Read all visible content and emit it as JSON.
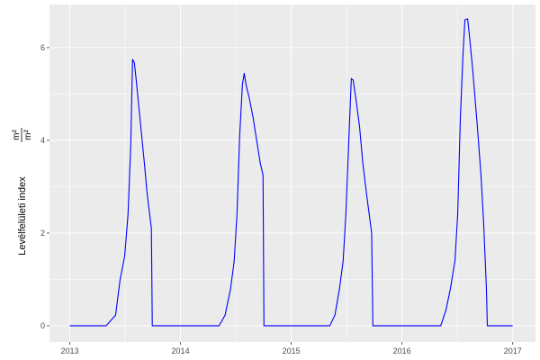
{
  "chart_data": {
    "type": "line",
    "title": "",
    "xlabel": "",
    "ylabel": "Levélfelületi index",
    "ylabel_unit_numerator": "m²",
    "ylabel_unit_denominator": "m²",
    "x_ticks": [
      "2013",
      "2014",
      "2015",
      "2016",
      "2017"
    ],
    "y_ticks": [
      "0",
      "2",
      "4",
      "6"
    ],
    "xlim": [
      "2012-10-26",
      "2017-03-17"
    ],
    "ylim": [
      -0.35,
      6.93
    ],
    "grid": true,
    "background": "#EBEBEB",
    "line_color": "#0000FF",
    "series": [
      {
        "points": [
          [
            "2013-01-01",
            0
          ],
          [
            "2013-05-01",
            0
          ],
          [
            "2013-06-01",
            0.23
          ],
          [
            "2013-06-16",
            1.0
          ],
          [
            "2013-07-01",
            1.5
          ],
          [
            "2013-07-12",
            2.4
          ],
          [
            "2013-07-21",
            3.9
          ],
          [
            "2013-07-27",
            5.75
          ],
          [
            "2013-08-02",
            5.67
          ],
          [
            "2013-08-08",
            5.3
          ],
          [
            "2013-08-20",
            4.5
          ],
          [
            "2013-09-04",
            3.5
          ],
          [
            "2013-09-13",
            2.85
          ],
          [
            "2013-09-27",
            2.1
          ],
          [
            "2013-09-30",
            0
          ],
          [
            "2014-05-08",
            0
          ],
          [
            "2014-05-28",
            0.23
          ],
          [
            "2014-06-15",
            0.8
          ],
          [
            "2014-06-27",
            1.4
          ],
          [
            "2014-07-06",
            2.4
          ],
          [
            "2014-07-15",
            4.1
          ],
          [
            "2014-07-24",
            5.2
          ],
          [
            "2014-07-30",
            5.45
          ],
          [
            "2014-08-05",
            5.2
          ],
          [
            "2014-08-16",
            4.9
          ],
          [
            "2014-08-28",
            4.5
          ],
          [
            "2014-09-09",
            4.0
          ],
          [
            "2014-09-21",
            3.5
          ],
          [
            "2014-09-30",
            3.25
          ],
          [
            "2014-10-03",
            0
          ],
          [
            "2015-05-08",
            0
          ],
          [
            "2015-05-25",
            0.23
          ],
          [
            "2015-06-09",
            0.8
          ],
          [
            "2015-06-21",
            1.4
          ],
          [
            "2015-06-30",
            2.4
          ],
          [
            "2015-07-09",
            3.9
          ],
          [
            "2015-07-18",
            5.33
          ],
          [
            "2015-07-24",
            5.3
          ],
          [
            "2015-08-02",
            4.9
          ],
          [
            "2015-08-14",
            4.3
          ],
          [
            "2015-08-25",
            3.5
          ],
          [
            "2015-09-06",
            2.85
          ],
          [
            "2015-09-18",
            2.25
          ],
          [
            "2015-09-23",
            2.0
          ],
          [
            "2015-09-27",
            0
          ],
          [
            "2016-05-08",
            0
          ],
          [
            "2016-05-25",
            0.33
          ],
          [
            "2016-06-09",
            0.8
          ],
          [
            "2016-06-24",
            1.4
          ],
          [
            "2016-07-03",
            2.4
          ],
          [
            "2016-07-12",
            4.5
          ],
          [
            "2016-07-21",
            5.9
          ],
          [
            "2016-07-27",
            6.6
          ],
          [
            "2016-08-05",
            6.62
          ],
          [
            "2016-08-11",
            6.25
          ],
          [
            "2016-08-22",
            5.5
          ],
          [
            "2016-09-06",
            4.3
          ],
          [
            "2016-09-18",
            3.25
          ],
          [
            "2016-09-27",
            2.2
          ],
          [
            "2016-10-06",
            0.8
          ],
          [
            "2016-10-09",
            0
          ],
          [
            "2017-01-01",
            0
          ]
        ]
      }
    ]
  }
}
